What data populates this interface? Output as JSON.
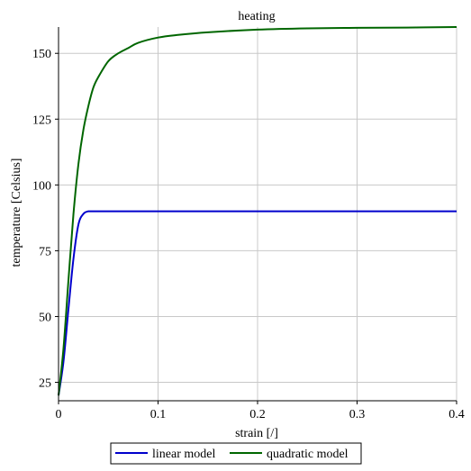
{
  "chart_data": {
    "type": "line",
    "title": "heating",
    "xlabel": "strain [/]",
    "ylabel": "temperature [Celsius]",
    "xlim": [
      0,
      0.4
    ],
    "ylim": [
      18,
      160
    ],
    "x_ticks": [
      0,
      0.1,
      0.2,
      0.3,
      0.4
    ],
    "x_tick_labels": [
      "0",
      "0.1",
      "0.2",
      "0.3",
      "0.4"
    ],
    "y_ticks": [
      25,
      50,
      75,
      100,
      125,
      150
    ],
    "y_tick_labels": [
      "25",
      "50",
      "75",
      "100",
      "125",
      "150"
    ],
    "grid": true,
    "legend_position": "bottom",
    "series": [
      {
        "name": "linear model",
        "color": "#0000cc",
        "x": [
          0,
          0.005,
          0.01,
          0.015,
          0.02,
          0.025,
          0.03,
          0.035,
          0.04,
          0.05,
          0.1,
          0.2,
          0.3,
          0.4
        ],
        "y": [
          20,
          33,
          53,
          72,
          85,
          89,
          90,
          90,
          90,
          90,
          90,
          90,
          90,
          90
        ]
      },
      {
        "name": "quadratic model",
        "color": "#006600",
        "x": [
          0,
          0.005,
          0.01,
          0.015,
          0.02,
          0.025,
          0.03,
          0.035,
          0.04,
          0.05,
          0.06,
          0.07,
          0.08,
          0.1,
          0.12,
          0.15,
          0.2,
          0.25,
          0.3,
          0.35,
          0.4
        ],
        "y": [
          20,
          38,
          64,
          89,
          108,
          121,
          130,
          137,
          141,
          147,
          150,
          152,
          154,
          156,
          157,
          158,
          159,
          159.5,
          159.7,
          159.8,
          160
        ]
      }
    ]
  }
}
